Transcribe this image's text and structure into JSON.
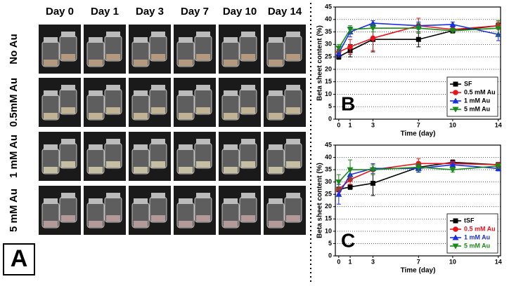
{
  "photo_grid": {
    "columns": [
      "Day 0",
      "Day 1",
      "Day 3",
      "Day 7",
      "Day 10",
      "Day 14"
    ],
    "rows": [
      "No Au",
      "0.5mM Au",
      "1 mM Au",
      "5 mM Au"
    ],
    "panel_label": "A"
  },
  "chart_data": [
    {
      "type": "line",
      "panel_label": "B",
      "x": [
        0,
        1,
        3,
        7,
        10,
        14
      ],
      "xlabel": "Time (day)",
      "ylabel": "Beta sheet content (%)",
      "xlim": [
        -0.3,
        14.2
      ],
      "ylim": [
        0,
        45
      ],
      "xticks": [
        0,
        1,
        3,
        7,
        10,
        14
      ],
      "yticks": [
        0,
        5,
        10,
        15,
        20,
        25,
        30,
        35,
        40,
        45
      ],
      "grid": true,
      "legend": "lower right",
      "legend_text_colored": false,
      "series": [
        {
          "name": "SF",
          "color": "#000000",
          "marker": "square",
          "values": [
            25,
            27.5,
            32,
            32,
            35.5,
            37.5
          ],
          "errors": [
            1,
            2.5,
            5,
            3,
            1,
            1
          ]
        },
        {
          "name": "0.5 mM Au",
          "color": "#e8141c",
          "marker": "circle",
          "values": [
            27,
            29,
            32.5,
            37.5,
            36,
            37.5
          ],
          "errors": [
            2,
            3,
            5,
            3,
            1.5,
            1.5
          ]
        },
        {
          "name": "1 mM Au",
          "color": "#1a2fe0",
          "marker": "triangle-up",
          "values": [
            26.5,
            35,
            38.5,
            37.5,
            38,
            34
          ],
          "errors": [
            1.5,
            2,
            1,
            1.5,
            1,
            2.5
          ]
        },
        {
          "name": "5 mM Au",
          "color": "#1a8a1a",
          "marker": "triangle-down",
          "values": [
            28.5,
            36,
            36.5,
            36.5,
            35.5,
            36.5
          ],
          "errors": [
            1.5,
            1.5,
            1.5,
            2,
            1,
            3
          ]
        }
      ]
    },
    {
      "type": "line",
      "panel_label": "C",
      "x": [
        0,
        1,
        3,
        7,
        10,
        14
      ],
      "xlabel": "Time (day)",
      "ylabel": "Beta sheet content (%)",
      "xlim": [
        -0.3,
        14.2
      ],
      "ylim": [
        0,
        45
      ],
      "xticks": [
        0,
        1,
        3,
        7,
        10,
        14
      ],
      "yticks": [
        0,
        5,
        10,
        15,
        20,
        25,
        30,
        35,
        40,
        45
      ],
      "grid": true,
      "legend": "lower right",
      "legend_text_colored": true,
      "series": [
        {
          "name": "tSF",
          "color": "#000000",
          "marker": "square",
          "values": [
            27,
            28,
            29.5,
            36,
            38,
            37
          ],
          "errors": [
            1,
            1,
            5,
            2,
            1,
            1
          ]
        },
        {
          "name": "0.5 mM Au",
          "color": "#e8141c",
          "marker": "circle",
          "values": [
            27,
            31,
            35,
            37.5,
            37.5,
            37
          ],
          "errors": [
            2,
            2,
            2,
            2,
            1,
            1
          ]
        },
        {
          "name": "1 mM Au",
          "color": "#1a2fe0",
          "marker": "triangle-up",
          "values": [
            25,
            33,
            35.5,
            35.5,
            37,
            35.5
          ],
          "errors": [
            4,
            2,
            2,
            1.5,
            1,
            1
          ]
        },
        {
          "name": "5 mM Au",
          "color": "#1a8a1a",
          "marker": "triangle-down",
          "values": [
            30,
            35,
            35,
            36,
            35,
            36.5
          ],
          "errors": [
            3,
            4,
            2,
            1.5,
            1,
            1
          ]
        }
      ]
    }
  ]
}
